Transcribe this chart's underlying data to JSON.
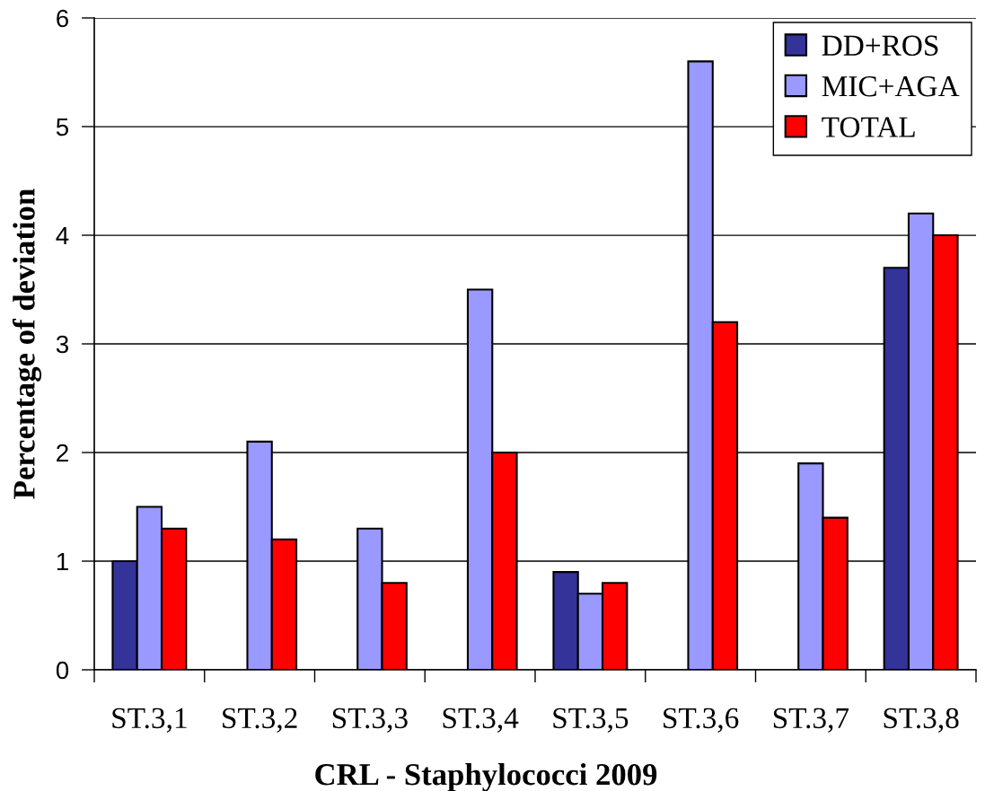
{
  "chart_data": {
    "type": "bar",
    "xlabel": "CRL - Staphylococci 2009",
    "ylabel": "Percentage of deviation",
    "categories": [
      "ST.3,1",
      "ST.3,2",
      "ST.3,3",
      "ST.3,4",
      "ST.3,5",
      "ST.3,6",
      "ST.3,7",
      "ST.3,8"
    ],
    "series": [
      {
        "name": "DD+ROS",
        "color": "#333399",
        "values": [
          1.0,
          null,
          null,
          null,
          0.9,
          null,
          null,
          3.7
        ]
      },
      {
        "name": "MIC+AGA",
        "color": "#9999ff",
        "values": [
          1.5,
          2.1,
          1.3,
          3.5,
          0.7,
          5.6,
          1.9,
          4.2
        ]
      },
      {
        "name": "TOTAL",
        "color": "#ff0000",
        "values": [
          1.3,
          1.2,
          0.8,
          2.0,
          0.8,
          3.2,
          1.4,
          4.0
        ]
      }
    ],
    "ylim": [
      0,
      6
    ],
    "yticks": [
      0,
      1,
      2,
      3,
      4,
      5,
      6
    ],
    "grid": "y",
    "legend": "top right"
  }
}
